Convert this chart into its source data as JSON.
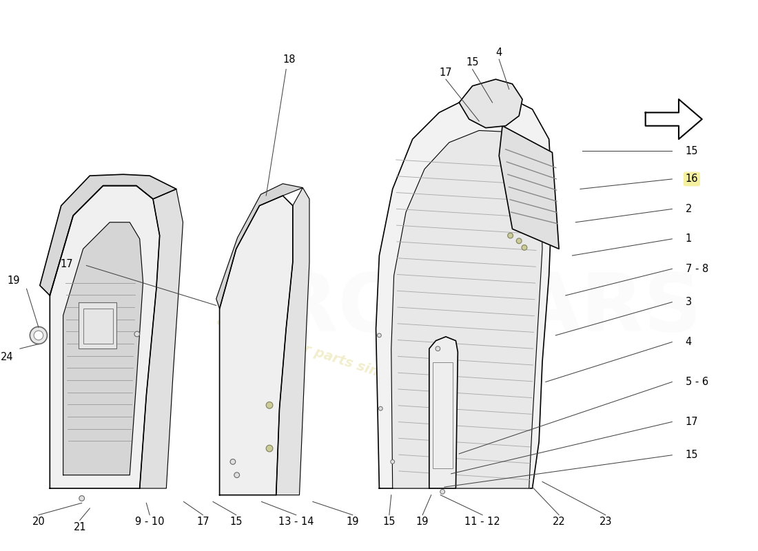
{
  "bg_color": "#ffffff",
  "watermark_color": "#d4c85a",
  "line_color": "#000000",
  "gray_fill": "#e8e8e8",
  "dark_gray": "#c0c0c0",
  "label_color": "#000000",
  "label_fontsize": 10.5,
  "fig_width": 11.0,
  "fig_height": 8.0,
  "dpi": 100
}
